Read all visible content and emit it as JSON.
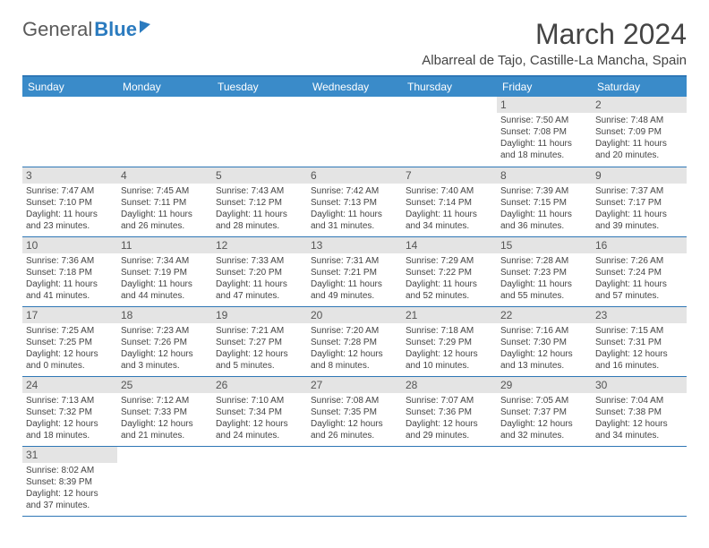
{
  "logo": {
    "part1": "General",
    "part2": "Blue"
  },
  "title": "March 2024",
  "location": "Albarreal de Tajo, Castille-La Mancha, Spain",
  "colors": {
    "header_bg": "#3a8bc9",
    "border": "#2f77b6",
    "daynum_bg": "#e4e4e4",
    "text": "#444444"
  },
  "weekdays": [
    "Sunday",
    "Monday",
    "Tuesday",
    "Wednesday",
    "Thursday",
    "Friday",
    "Saturday"
  ],
  "weeks": [
    [
      null,
      null,
      null,
      null,
      null,
      {
        "n": "1",
        "sr": "7:50 AM",
        "ss": "7:08 PM",
        "dl": "11 hours and 18 minutes."
      },
      {
        "n": "2",
        "sr": "7:48 AM",
        "ss": "7:09 PM",
        "dl": "11 hours and 20 minutes."
      }
    ],
    [
      {
        "n": "3",
        "sr": "7:47 AM",
        "ss": "7:10 PM",
        "dl": "11 hours and 23 minutes."
      },
      {
        "n": "4",
        "sr": "7:45 AM",
        "ss": "7:11 PM",
        "dl": "11 hours and 26 minutes."
      },
      {
        "n": "5",
        "sr": "7:43 AM",
        "ss": "7:12 PM",
        "dl": "11 hours and 28 minutes."
      },
      {
        "n": "6",
        "sr": "7:42 AM",
        "ss": "7:13 PM",
        "dl": "11 hours and 31 minutes."
      },
      {
        "n": "7",
        "sr": "7:40 AM",
        "ss": "7:14 PM",
        "dl": "11 hours and 34 minutes."
      },
      {
        "n": "8",
        "sr": "7:39 AM",
        "ss": "7:15 PM",
        "dl": "11 hours and 36 minutes."
      },
      {
        "n": "9",
        "sr": "7:37 AM",
        "ss": "7:17 PM",
        "dl": "11 hours and 39 minutes."
      }
    ],
    [
      {
        "n": "10",
        "sr": "7:36 AM",
        "ss": "7:18 PM",
        "dl": "11 hours and 41 minutes."
      },
      {
        "n": "11",
        "sr": "7:34 AM",
        "ss": "7:19 PM",
        "dl": "11 hours and 44 minutes."
      },
      {
        "n": "12",
        "sr": "7:33 AM",
        "ss": "7:20 PM",
        "dl": "11 hours and 47 minutes."
      },
      {
        "n": "13",
        "sr": "7:31 AM",
        "ss": "7:21 PM",
        "dl": "11 hours and 49 minutes."
      },
      {
        "n": "14",
        "sr": "7:29 AM",
        "ss": "7:22 PM",
        "dl": "11 hours and 52 minutes."
      },
      {
        "n": "15",
        "sr": "7:28 AM",
        "ss": "7:23 PM",
        "dl": "11 hours and 55 minutes."
      },
      {
        "n": "16",
        "sr": "7:26 AM",
        "ss": "7:24 PM",
        "dl": "11 hours and 57 minutes."
      }
    ],
    [
      {
        "n": "17",
        "sr": "7:25 AM",
        "ss": "7:25 PM",
        "dl": "12 hours and 0 minutes."
      },
      {
        "n": "18",
        "sr": "7:23 AM",
        "ss": "7:26 PM",
        "dl": "12 hours and 3 minutes."
      },
      {
        "n": "19",
        "sr": "7:21 AM",
        "ss": "7:27 PM",
        "dl": "12 hours and 5 minutes."
      },
      {
        "n": "20",
        "sr": "7:20 AM",
        "ss": "7:28 PM",
        "dl": "12 hours and 8 minutes."
      },
      {
        "n": "21",
        "sr": "7:18 AM",
        "ss": "7:29 PM",
        "dl": "12 hours and 10 minutes."
      },
      {
        "n": "22",
        "sr": "7:16 AM",
        "ss": "7:30 PM",
        "dl": "12 hours and 13 minutes."
      },
      {
        "n": "23",
        "sr": "7:15 AM",
        "ss": "7:31 PM",
        "dl": "12 hours and 16 minutes."
      }
    ],
    [
      {
        "n": "24",
        "sr": "7:13 AM",
        "ss": "7:32 PM",
        "dl": "12 hours and 18 minutes."
      },
      {
        "n": "25",
        "sr": "7:12 AM",
        "ss": "7:33 PM",
        "dl": "12 hours and 21 minutes."
      },
      {
        "n": "26",
        "sr": "7:10 AM",
        "ss": "7:34 PM",
        "dl": "12 hours and 24 minutes."
      },
      {
        "n": "27",
        "sr": "7:08 AM",
        "ss": "7:35 PM",
        "dl": "12 hours and 26 minutes."
      },
      {
        "n": "28",
        "sr": "7:07 AM",
        "ss": "7:36 PM",
        "dl": "12 hours and 29 minutes."
      },
      {
        "n": "29",
        "sr": "7:05 AM",
        "ss": "7:37 PM",
        "dl": "12 hours and 32 minutes."
      },
      {
        "n": "30",
        "sr": "7:04 AM",
        "ss": "7:38 PM",
        "dl": "12 hours and 34 minutes."
      }
    ],
    [
      {
        "n": "31",
        "sr": "8:02 AM",
        "ss": "8:39 PM",
        "dl": "12 hours and 37 minutes."
      },
      null,
      null,
      null,
      null,
      null,
      null
    ]
  ],
  "labels": {
    "sunrise": "Sunrise:",
    "sunset": "Sunset:",
    "daylight": "Daylight:"
  }
}
